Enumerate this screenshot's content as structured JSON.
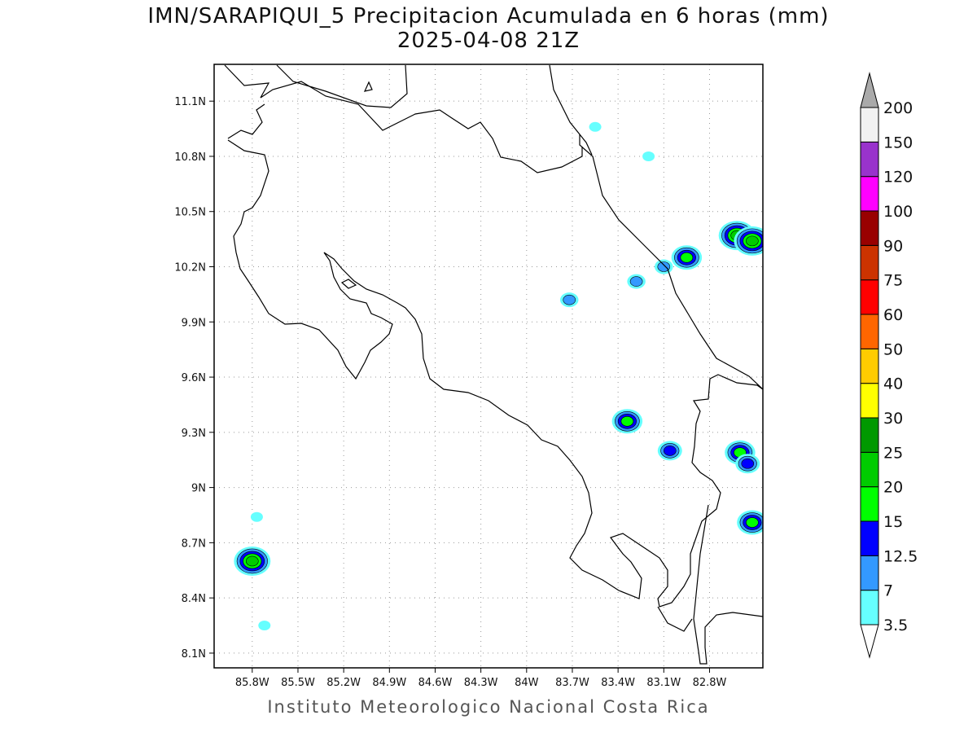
{
  "title": {
    "line1": "IMN/SARAPIQUI_5 Precipitacion Acumulada en 6 horas (mm)",
    "line2": "2025-04-08 21Z"
  },
  "footer": "Instituto Meteorologico Nacional Costa Rica",
  "map": {
    "x_ticks": [
      "85.8W",
      "85.5W",
      "85.2W",
      "84.9W",
      "84.6W",
      "84.3W",
      "84W",
      "83.7W",
      "83.4W",
      "83.1W",
      "82.8W"
    ],
    "x_values": [
      -85.8,
      -85.5,
      -85.2,
      -84.9,
      -84.6,
      -84.3,
      -84.0,
      -83.7,
      -83.4,
      -83.1,
      -82.8
    ],
    "y_ticks": [
      "8.1N",
      "8.4N",
      "8.7N",
      "9N",
      "9.3N",
      "9.6N",
      "9.9N",
      "10.2N",
      "10.5N",
      "10.8N",
      "11.1N"
    ],
    "y_values": [
      8.1,
      8.4,
      8.7,
      9.0,
      9.3,
      9.6,
      9.9,
      10.2,
      10.5,
      10.8,
      11.1
    ],
    "lon_range": [
      -86.05,
      -82.45
    ],
    "lat_range": [
      8.02,
      11.3
    ],
    "grid": true,
    "grid_style": "dotted"
  },
  "colorbar": {
    "labels": [
      "3.5",
      "7",
      "12.5",
      "15",
      "20",
      "25",
      "30",
      "40",
      "50",
      "60",
      "75",
      "90",
      "100",
      "120",
      "150",
      "200"
    ],
    "colors": [
      "#ffffff",
      "#66ffff",
      "#3399ff",
      "#0000ff",
      "#00ff00",
      "#00cc00",
      "#009900",
      "#ffff00",
      "#ffcc00",
      "#ff6600",
      "#ff0000",
      "#cc3300",
      "#990000",
      "#ff00ff",
      "#9933cc",
      "#f2f2f2",
      "#aaaaaa"
    ]
  },
  "precip_cells": [
    {
      "lon": -85.8,
      "lat": 8.6,
      "level": 5
    },
    {
      "lon": -85.77,
      "lat": 8.84,
      "level": 1
    },
    {
      "lon": -85.72,
      "lat": 8.25,
      "level": 1
    },
    {
      "lon": -83.72,
      "lat": 10.02,
      "level": 2
    },
    {
      "lon": -83.34,
      "lat": 9.36,
      "level": 4
    },
    {
      "lon": -83.28,
      "lat": 10.12,
      "level": 2
    },
    {
      "lon": -82.95,
      "lat": 10.25,
      "level": 4
    },
    {
      "lon": -82.62,
      "lat": 10.37,
      "level": 5
    },
    {
      "lon": -82.52,
      "lat": 10.34,
      "level": 5
    },
    {
      "lon": -83.06,
      "lat": 9.2,
      "level": 3
    },
    {
      "lon": -82.6,
      "lat": 9.19,
      "level": 4
    },
    {
      "lon": -82.55,
      "lat": 9.13,
      "level": 3
    },
    {
      "lon": -82.52,
      "lat": 8.81,
      "level": 4
    },
    {
      "lon": -83.55,
      "lat": 10.96,
      "level": 1
    },
    {
      "lon": -83.2,
      "lat": 10.8,
      "level": 1
    },
    {
      "lon": -83.1,
      "lat": 10.2,
      "level": 2
    }
  ]
}
